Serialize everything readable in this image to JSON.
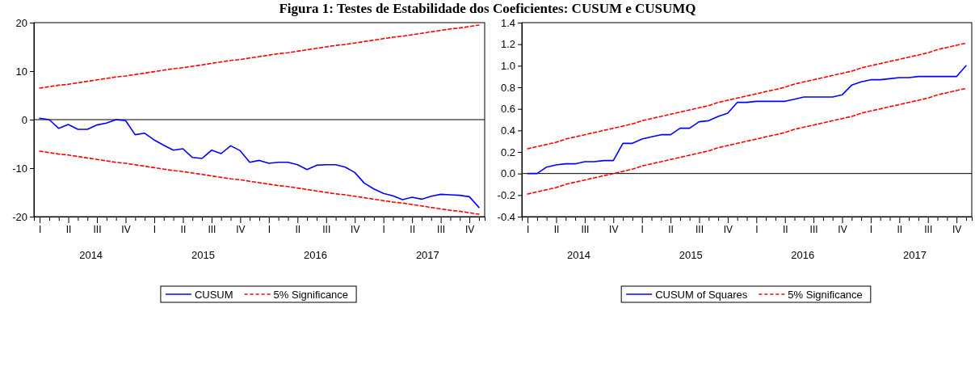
{
  "chart_data": [
    {
      "type": "line",
      "title": "Figura 1: Testes de Estabilidade dos Coeficientes: CUSUM e CUSUMQ",
      "categories": [
        "I",
        null,
        null,
        "II",
        null,
        null,
        "III",
        null,
        null,
        "IV",
        null,
        null,
        "I",
        null,
        null,
        "II",
        null,
        null,
        "III",
        null,
        null,
        "IV",
        null,
        null,
        "I",
        null,
        null,
        "II",
        null,
        null,
        "III",
        null,
        null,
        "IV",
        null,
        null,
        "I",
        null,
        null,
        "II",
        null,
        null,
        "III",
        null,
        null,
        "IV",
        null
      ],
      "series": [
        {
          "name": "CUSUM",
          "color": "#0000ff",
          "line_style": "solid",
          "values": [
            0.3,
            0,
            -1.8,
            -1,
            -2,
            -2,
            -1.1,
            -0.7,
            0,
            -0.2,
            -3.1,
            -2.8,
            -4.2,
            -5.3,
            -6.3,
            -6,
            -7.8,
            -8,
            -6.3,
            -7,
            -5.4,
            -6.4,
            -8.8,
            -8.4,
            -9,
            -8.8,
            -8.8,
            -9.3,
            -10.3,
            -9.4,
            -9.3,
            -9.3,
            -9.8,
            -10.9,
            -13.1,
            -14.3,
            -15.2,
            -15.7,
            -16.5,
            -16,
            -16.4,
            -15.8,
            -15.4,
            -15.5,
            -15.6,
            -15.9,
            -18.1
          ]
        },
        {
          "name": "5% Significance",
          "color": "#ff0000",
          "line_style": "dashed",
          "values": [
            6.5,
            6.8,
            7.1,
            7.3,
            7.6,
            7.9,
            8.2,
            8.5,
            8.8,
            9.0,
            9.3,
            9.6,
            9.9,
            10.2,
            10.5,
            10.7,
            11.0,
            11.3,
            11.6,
            11.9,
            12.2,
            12.4,
            12.7,
            13.0,
            13.3,
            13.6,
            13.8,
            14.1,
            14.4,
            14.7,
            15.0,
            15.3,
            15.5,
            15.8,
            16.1,
            16.4,
            16.7,
            17.0,
            17.2,
            17.5,
            17.8,
            18.1,
            18.4,
            18.7,
            18.9,
            19.2,
            19.5
          ]
        },
        {
          "color": "#ff0000",
          "line_style": "dashed",
          "values": [
            -6.5,
            -6.8,
            -7.1,
            -7.3,
            -7.6,
            -7.9,
            -8.2,
            -8.5,
            -8.8,
            -9.0,
            -9.3,
            -9.6,
            -9.9,
            -10.2,
            -10.5,
            -10.7,
            -11.0,
            -11.3,
            -11.6,
            -11.9,
            -12.2,
            -12.4,
            -12.7,
            -13.0,
            -13.3,
            -13.6,
            -13.8,
            -14.1,
            -14.4,
            -14.7,
            -15.0,
            -15.3,
            -15.5,
            -15.8,
            -16.1,
            -16.4,
            -16.7,
            -17.0,
            -17.2,
            -17.5,
            -17.8,
            -18.1,
            -18.4,
            -18.7,
            -18.9,
            -19.2,
            -19.5
          ]
        }
      ],
      "ylim": [
        -20,
        20
      ],
      "yticks": [
        -20,
        -10,
        0,
        10,
        20
      ],
      "ref_lines": [
        {
          "axis": "y",
          "value": 0,
          "color": "#000000"
        }
      ],
      "annotations": [
        "2014",
        "2015",
        "2016",
        "2017"
      ],
      "legend": "bottom",
      "marker": "none"
    },
    {
      "type": "line",
      "categories": [
        "I",
        null,
        null,
        "II",
        null,
        null,
        "III",
        null,
        null,
        "IV",
        null,
        null,
        "I",
        null,
        null,
        "II",
        null,
        null,
        "III",
        null,
        null,
        "IV",
        null,
        null,
        "I",
        null,
        null,
        "II",
        null,
        null,
        "III",
        null,
        null,
        "IV",
        null,
        null,
        "I",
        null,
        null,
        "II",
        null,
        null,
        "III",
        null,
        null,
        "IV",
        null
      ],
      "series": [
        {
          "name": "CUSUM of Squares",
          "color": "#0000ff",
          "line_style": "solid",
          "values": [
            0,
            0,
            0.06,
            0.08,
            0.09,
            0.09,
            0.11,
            0.11,
            0.12,
            0.12,
            0.28,
            0.28,
            0.32,
            0.34,
            0.36,
            0.36,
            0.42,
            0.42,
            0.48,
            0.49,
            0.53,
            0.56,
            0.66,
            0.66,
            0.67,
            0.67,
            0.67,
            0.67,
            0.69,
            0.71,
            0.71,
            0.71,
            0.71,
            0.73,
            0.82,
            0.85,
            0.87,
            0.87,
            0.88,
            0.89,
            0.89,
            0.9,
            0.9,
            0.9,
            0.9,
            0.9,
            1
          ]
        },
        {
          "name": "5% Significance",
          "color": "#ff0000",
          "line_style": "dashed",
          "values": [
            0.23,
            0.25,
            0.27,
            0.29,
            0.32,
            0.34,
            0.36,
            0.38,
            0.4,
            0.42,
            0.44,
            0.46,
            0.49,
            0.51,
            0.53,
            0.55,
            0.57,
            0.59,
            0.61,
            0.63,
            0.66,
            0.68,
            0.7,
            0.72,
            0.74,
            0.76,
            0.78,
            0.8,
            0.83,
            0.85,
            0.87,
            0.89,
            0.91,
            0.93,
            0.95,
            0.98,
            1.0,
            1.02,
            1.04,
            1.06,
            1.08,
            1.1,
            1.12,
            1.15,
            1.17,
            1.19,
            1.21
          ]
        },
        {
          "color": "#ff0000",
          "line_style": "dashed",
          "values": [
            -0.19,
            -0.17,
            -0.15,
            -0.13,
            -0.1,
            -0.08,
            -0.06,
            -0.04,
            -0.02,
            0.0,
            0.02,
            0.04,
            0.07,
            0.09,
            0.11,
            0.13,
            0.15,
            0.17,
            0.19,
            0.21,
            0.24,
            0.26,
            0.28,
            0.3,
            0.32,
            0.34,
            0.36,
            0.38,
            0.41,
            0.43,
            0.45,
            0.47,
            0.49,
            0.51,
            0.53,
            0.56,
            0.58,
            0.6,
            0.62,
            0.64,
            0.66,
            0.68,
            0.7,
            0.73,
            0.75,
            0.77,
            0.79
          ]
        }
      ],
      "ylim": [
        -0.4,
        1.4
      ],
      "yticks": [
        -0.4,
        -0.2,
        {
          "value": 0,
          "label": "0.0"
        },
        0.2,
        0.4,
        0.6,
        0.8,
        {
          "value": 1,
          "label": "1.0"
        },
        1.2,
        1.4
      ],
      "ref_lines": [
        {
          "axis": "y",
          "value": 0,
          "color": "#000000"
        }
      ],
      "annotations": [
        "2014",
        "2015",
        "2016",
        "2017"
      ],
      "legend": "bottom",
      "marker": "none"
    }
  ]
}
